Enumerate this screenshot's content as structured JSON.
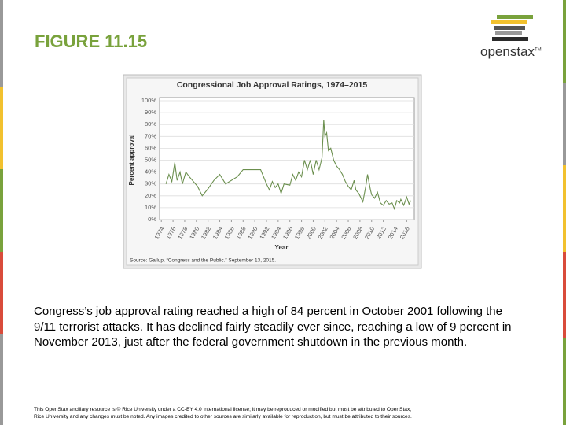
{
  "title": "FIGURE 11.15",
  "logo": "openstax",
  "logo_mark": "TM",
  "caption": "Congress’s job approval rating reached a high of 84 percent in October 2001 following the 9/11 terrorist attacks. It has declined fairly steadily ever since, reaching a low of 9 percent in November 2013, just after the federal government shutdown in the previous month.",
  "footer": [
    "This OpenStax ancillary resource is © Rice University under a CC-BY 4.0 International license; it may be reproduced or modified but must be attributed to OpenStax,",
    "Rice University and any changes must be noted. Any images credited to other sources are similarly available for reproduction, but must be attributed to their sources."
  ],
  "chart_data": {
    "type": "line",
    "title": "Congressional Job Approval Ratings, 1974–2015",
    "x_label": "Year",
    "y_label": "Percent approval",
    "source": "Source: Gallup, “Congress and the Public.” September 13, 2015.",
    "color": "#6b8f4e",
    "x": [
      1974.8,
      1975.3,
      1975.8,
      1976.3,
      1976.7,
      1977.2,
      1977.6,
      1978.2,
      1978.8,
      1979.5,
      1980.2,
      1981,
      1982,
      1983,
      1984,
      1985,
      1987,
      1988,
      1990,
      1991,
      1992,
      1992.5,
      1993,
      1993.5,
      1994,
      1994.5,
      1995,
      1996,
      1996.5,
      1997,
      1997.5,
      1998,
      1998.5,
      1999,
      1999.5,
      2000,
      2000.5,
      2001,
      2001.5,
      2001.8,
      2002,
      2002.3,
      2002.6,
      2003,
      2003.5,
      2004,
      2004.5,
      2005,
      2005.5,
      2006,
      2006.5,
      2007,
      2007.3,
      2007.8,
      2008,
      2008.5,
      2009,
      2009.3,
      2009.8,
      2010,
      2010.5,
      2011,
      2011.5,
      2012,
      2012.5,
      2013,
      2013.5,
      2013.9,
      2014.3,
      2014.8,
      2015,
      2015.5,
      2016,
      2016.4,
      2016.7
    ],
    "values": [
      30,
      38,
      32,
      48,
      33,
      40,
      30,
      40,
      36,
      32,
      28,
      20,
      26,
      33,
      38,
      30,
      36,
      42,
      42,
      42,
      30,
      25,
      32,
      27,
      30,
      22,
      30,
      29,
      38,
      33,
      40,
      36,
      50,
      42,
      50,
      38,
      50,
      42,
      52,
      84,
      70,
      73,
      58,
      60,
      50,
      45,
      42,
      38,
      32,
      28,
      25,
      33,
      25,
      22,
      20,
      15,
      28,
      38,
      25,
      21,
      18,
      23,
      14,
      12,
      16,
      13,
      14,
      9,
      16,
      14,
      17,
      12,
      19,
      13,
      16
    ],
    "xlim": [
      1973.7,
      2017.3
    ],
    "xticks": [
      1974,
      1976,
      1978,
      1980,
      1982,
      1984,
      1986,
      1988,
      1990,
      1992,
      1994,
      1996,
      1998,
      2000,
      2002,
      2004,
      2006,
      2008,
      2010,
      2012,
      2014,
      2016
    ],
    "ylim": [
      0,
      100
    ],
    "yticks": [
      {
        "value": 0,
        "label": "0%"
      },
      {
        "value": 10,
        "label": "10%"
      },
      {
        "value": 20,
        "label": "20%"
      },
      {
        "value": 30,
        "label": "30%"
      },
      {
        "value": 40,
        "label": "40%"
      },
      {
        "value": 50,
        "label": "50%"
      },
      {
        "value": 60,
        "label": "60%"
      },
      {
        "value": 70,
        "label": "70%"
      },
      {
        "value": 80,
        "label": "80%"
      },
      {
        "value": 90,
        "label": "90%"
      },
      {
        "value": 100,
        "label": "100%"
      }
    ],
    "grid": true
  }
}
